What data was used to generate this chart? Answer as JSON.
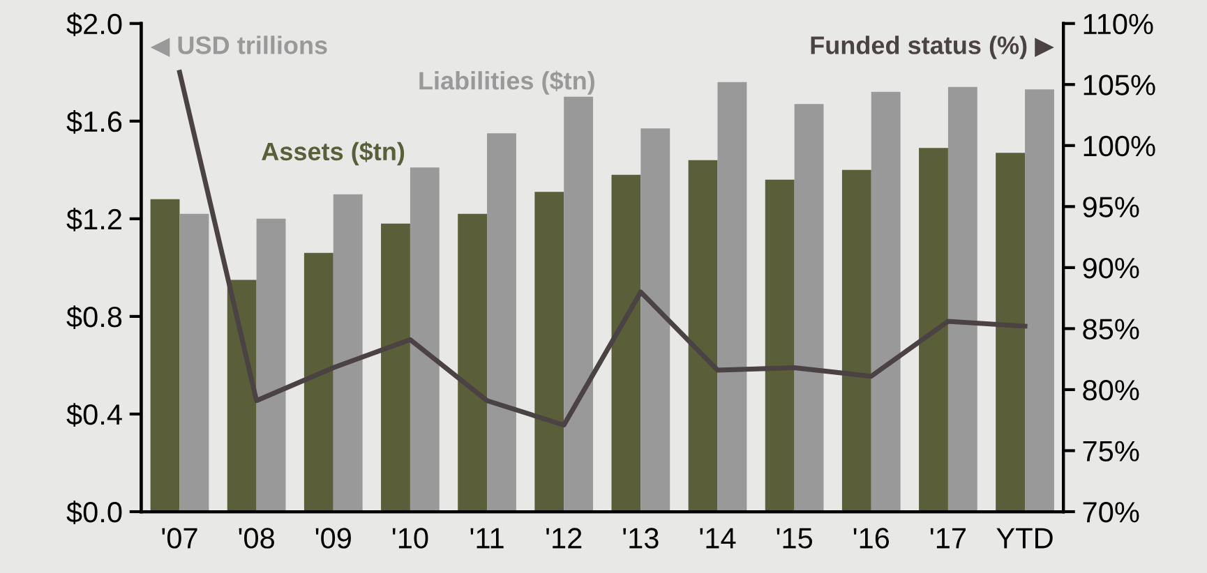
{
  "chart_data": {
    "type": "bar",
    "ylabel": "◀ USD trillions",
    "y2label": "Funded status (%) ▶",
    "categories": [
      "'07",
      "'08",
      "'09",
      "'10",
      "'11",
      "'12",
      "'13",
      "'14",
      "'15",
      "'16",
      "'17",
      "YTD"
    ],
    "series": [
      {
        "name": "Assets ($tn)",
        "color": "#5a5f3a",
        "values": [
          1.28,
          0.95,
          1.06,
          1.18,
          1.22,
          1.31,
          1.38,
          1.44,
          1.36,
          1.4,
          1.49,
          1.47
        ]
      },
      {
        "name": "Liabilities ($tn)",
        "color": "#999999",
        "values": [
          1.22,
          1.2,
          1.3,
          1.41,
          1.55,
          1.7,
          1.57,
          1.76,
          1.67,
          1.72,
          1.74,
          1.73
        ]
      },
      {
        "type": "line",
        "axis": "y2",
        "color": "#4a4243",
        "values": [
          106,
          79.1,
          81.8,
          84.1,
          79.1,
          77.1,
          88.0,
          81.6,
          81.8,
          81.1,
          85.6,
          85.2
        ]
      }
    ],
    "ylim": [
      0,
      2.0
    ],
    "yticks": [
      {
        "value": 0,
        "label": "$0.0"
      },
      {
        "value": 0.4,
        "label": "$0.4"
      },
      {
        "value": 0.8,
        "label": "$0.8"
      },
      {
        "value": 1.2,
        "label": "$1.2"
      },
      {
        "value": 1.6,
        "label": "$1.6"
      },
      {
        "value": 2.0,
        "label": "$2.0"
      }
    ],
    "y2lim": [
      70,
      110
    ],
    "y2ticks": [
      {
        "value": 70,
        "label": "70%"
      },
      {
        "value": 75,
        "label": "75%"
      },
      {
        "value": 80,
        "label": "80%"
      },
      {
        "value": 85,
        "label": "85%"
      },
      {
        "value": 90,
        "label": "90%"
      },
      {
        "value": 95,
        "label": "95%"
      },
      {
        "value": 100,
        "label": "100%"
      },
      {
        "value": 105,
        "label": "105%"
      },
      {
        "value": 110,
        "label": "110%"
      }
    ],
    "grid": false,
    "legend": false
  }
}
